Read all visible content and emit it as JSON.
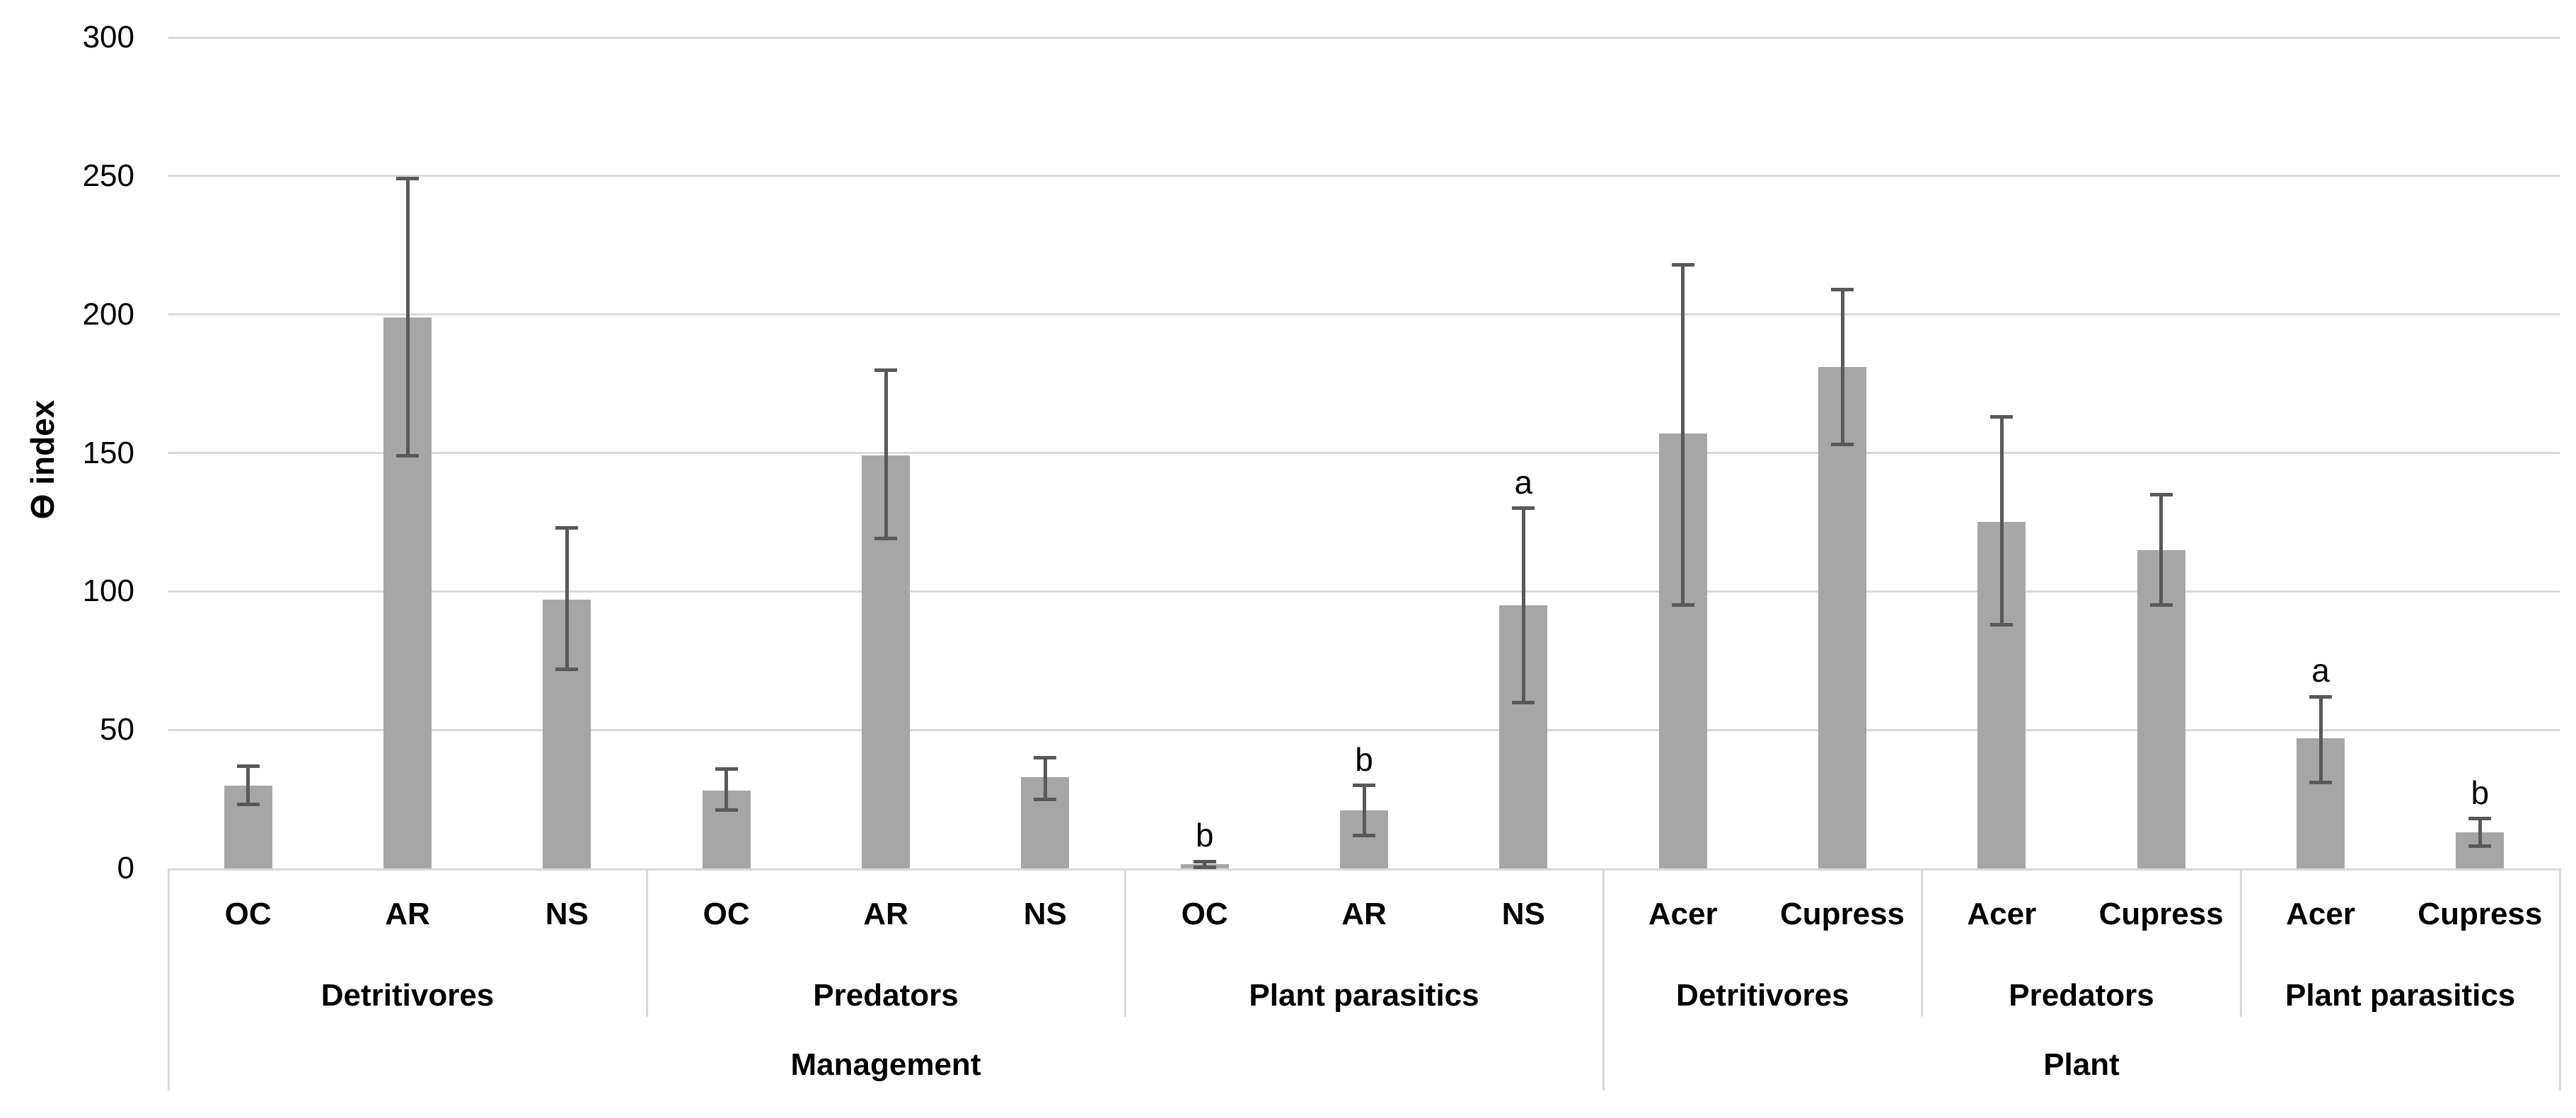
{
  "chart_data": {
    "type": "bar",
    "title": "",
    "ylabel": "Ɵ index",
    "xlabel": "",
    "ylim": [
      0,
      300
    ],
    "yticks": [
      0,
      50,
      100,
      150,
      200,
      250,
      300
    ],
    "grid": true,
    "legend": "none",
    "bar_color": "#a6a6a6",
    "error_bar_color": "#595959",
    "gridline_color": "#d9d9d9",
    "axis_box_color": "#d9d9d9",
    "text_color": "#000000",
    "groups": [
      {
        "label": "Management",
        "subgroups": [
          {
            "label": "Detritivores",
            "bars": [
              {
                "label": "OC",
                "value": 30,
                "err_lo": 23,
                "err_hi": 37
              },
              {
                "label": "AR",
                "value": 199,
                "err_lo": 149,
                "err_hi": 249
              },
              {
                "label": "NS",
                "value": 97,
                "err_lo": 72,
                "err_hi": 123
              }
            ]
          },
          {
            "label": "Predators",
            "bars": [
              {
                "label": "OC",
                "value": 28,
                "err_lo": 21,
                "err_hi": 36
              },
              {
                "label": "AR",
                "value": 149,
                "err_lo": 119,
                "err_hi": 180
              },
              {
                "label": "NS",
                "value": 33,
                "err_lo": 25,
                "err_hi": 40
              }
            ]
          },
          {
            "label": "Plant parasitics",
            "bars": [
              {
                "label": "OC",
                "value": 1.5,
                "err_lo": 0.5,
                "err_hi": 2.5,
                "letter": "b"
              },
              {
                "label": "AR",
                "value": 21,
                "err_lo": 12,
                "err_hi": 30,
                "letter": "b"
              },
              {
                "label": "NS",
                "value": 95,
                "err_lo": 60,
                "err_hi": 130,
                "letter": "a"
              }
            ]
          }
        ]
      },
      {
        "label": "Plant",
        "subgroups": [
          {
            "label": "Detritivores",
            "bars": [
              {
                "label": "Acer",
                "value": 157,
                "err_lo": 95,
                "err_hi": 218
              },
              {
                "label": "Cupress",
                "value": 181,
                "err_lo": 153,
                "err_hi": 209
              }
            ]
          },
          {
            "label": "Predators",
            "bars": [
              {
                "label": "Acer",
                "value": 125,
                "err_lo": 88,
                "err_hi": 163
              },
              {
                "label": "Cupress",
                "value": 115,
                "err_lo": 95,
                "err_hi": 135
              }
            ]
          },
          {
            "label": "Plant parasitics",
            "bars": [
              {
                "label": "Acer",
                "value": 47,
                "err_lo": 31,
                "err_hi": 62,
                "letter": "a"
              },
              {
                "label": "Cupress",
                "value": 13,
                "err_lo": 8,
                "err_hi": 18,
                "letter": "b"
              }
            ]
          }
        ]
      }
    ]
  }
}
